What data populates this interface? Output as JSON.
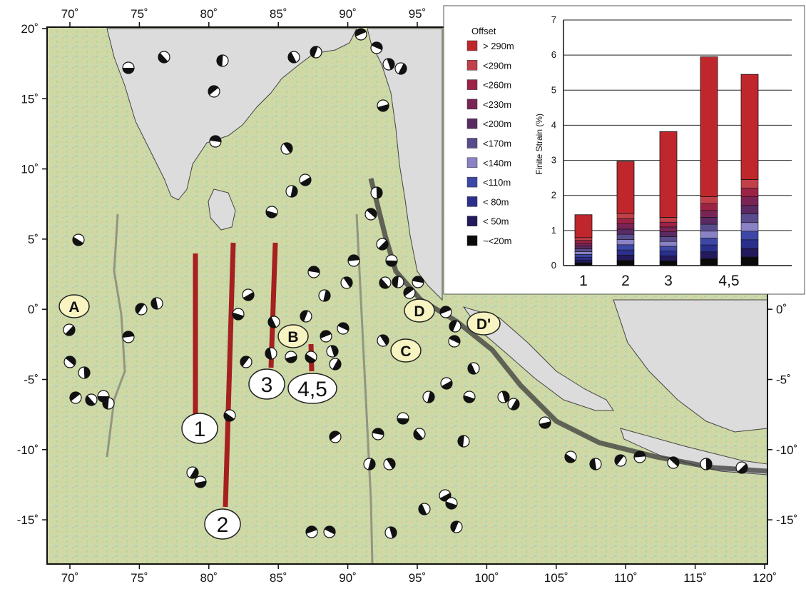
{
  "map": {
    "lon_ticks_bottom": [
      "70˚",
      "75˚",
      "80˚",
      "85˚",
      "90˚",
      "95˚",
      "100˚",
      "105˚",
      "110˚",
      "115˚",
      "120˚"
    ],
    "lon_ticks_top": [
      "70˚",
      "75˚",
      "80˚",
      "85˚",
      "90˚",
      "95˚"
    ],
    "lat_ticks_left": [
      "20˚",
      "15˚",
      "10˚",
      "5˚",
      "0˚",
      "-5˚",
      "-10˚",
      "-15˚"
    ],
    "lat_ticks_right": [
      "0˚",
      "-5˚",
      "-10˚",
      "-15˚"
    ],
    "region_labels": [
      "A",
      "B",
      "C",
      "D",
      "D'"
    ],
    "track_labels": [
      "1",
      "2",
      "3",
      "4,5"
    ],
    "colors": {
      "ocean": "#c9d9a8",
      "land": "#dcdcdc",
      "track": "#a52020",
      "label_fill": "#f8f4c2"
    }
  },
  "chart_data": {
    "type": "bar",
    "stacked": true,
    "categories": [
      "1",
      "2",
      "3",
      "4,5",
      "4,5"
    ],
    "xlabel": "",
    "ylabel": "Finite Strain (%)",
    "ylim": [
      0,
      7
    ],
    "yticks": [
      "0",
      "1",
      "2",
      "3",
      "4",
      "5",
      "6",
      "7"
    ],
    "totals": [
      1.45,
      2.97,
      3.82,
      5.95,
      5.45
    ],
    "legend_title": "Offset",
    "legend": [
      {
        "label": "> 290m",
        "color": "#c0272d"
      },
      {
        "label": "<290m",
        "color": "#c1404a"
      },
      {
        "label": "<260m",
        "color": "#9b2346"
      },
      {
        "label": "<230m",
        "color": "#7a2456"
      },
      {
        "label": "<200m",
        "color": "#5a2a62"
      },
      {
        "label": "<170m",
        "color": "#5a4c8c"
      },
      {
        "label": "<140m",
        "color": "#8a82c4"
      },
      {
        "label": "<110m",
        "color": "#3d47a6"
      },
      {
        "label": "< 80m",
        "color": "#2b2f8c"
      },
      {
        "label": "< 50m",
        "color": "#221a5c"
      },
      {
        "label": "~<20m",
        "color": "#0a0a0a"
      }
    ]
  }
}
